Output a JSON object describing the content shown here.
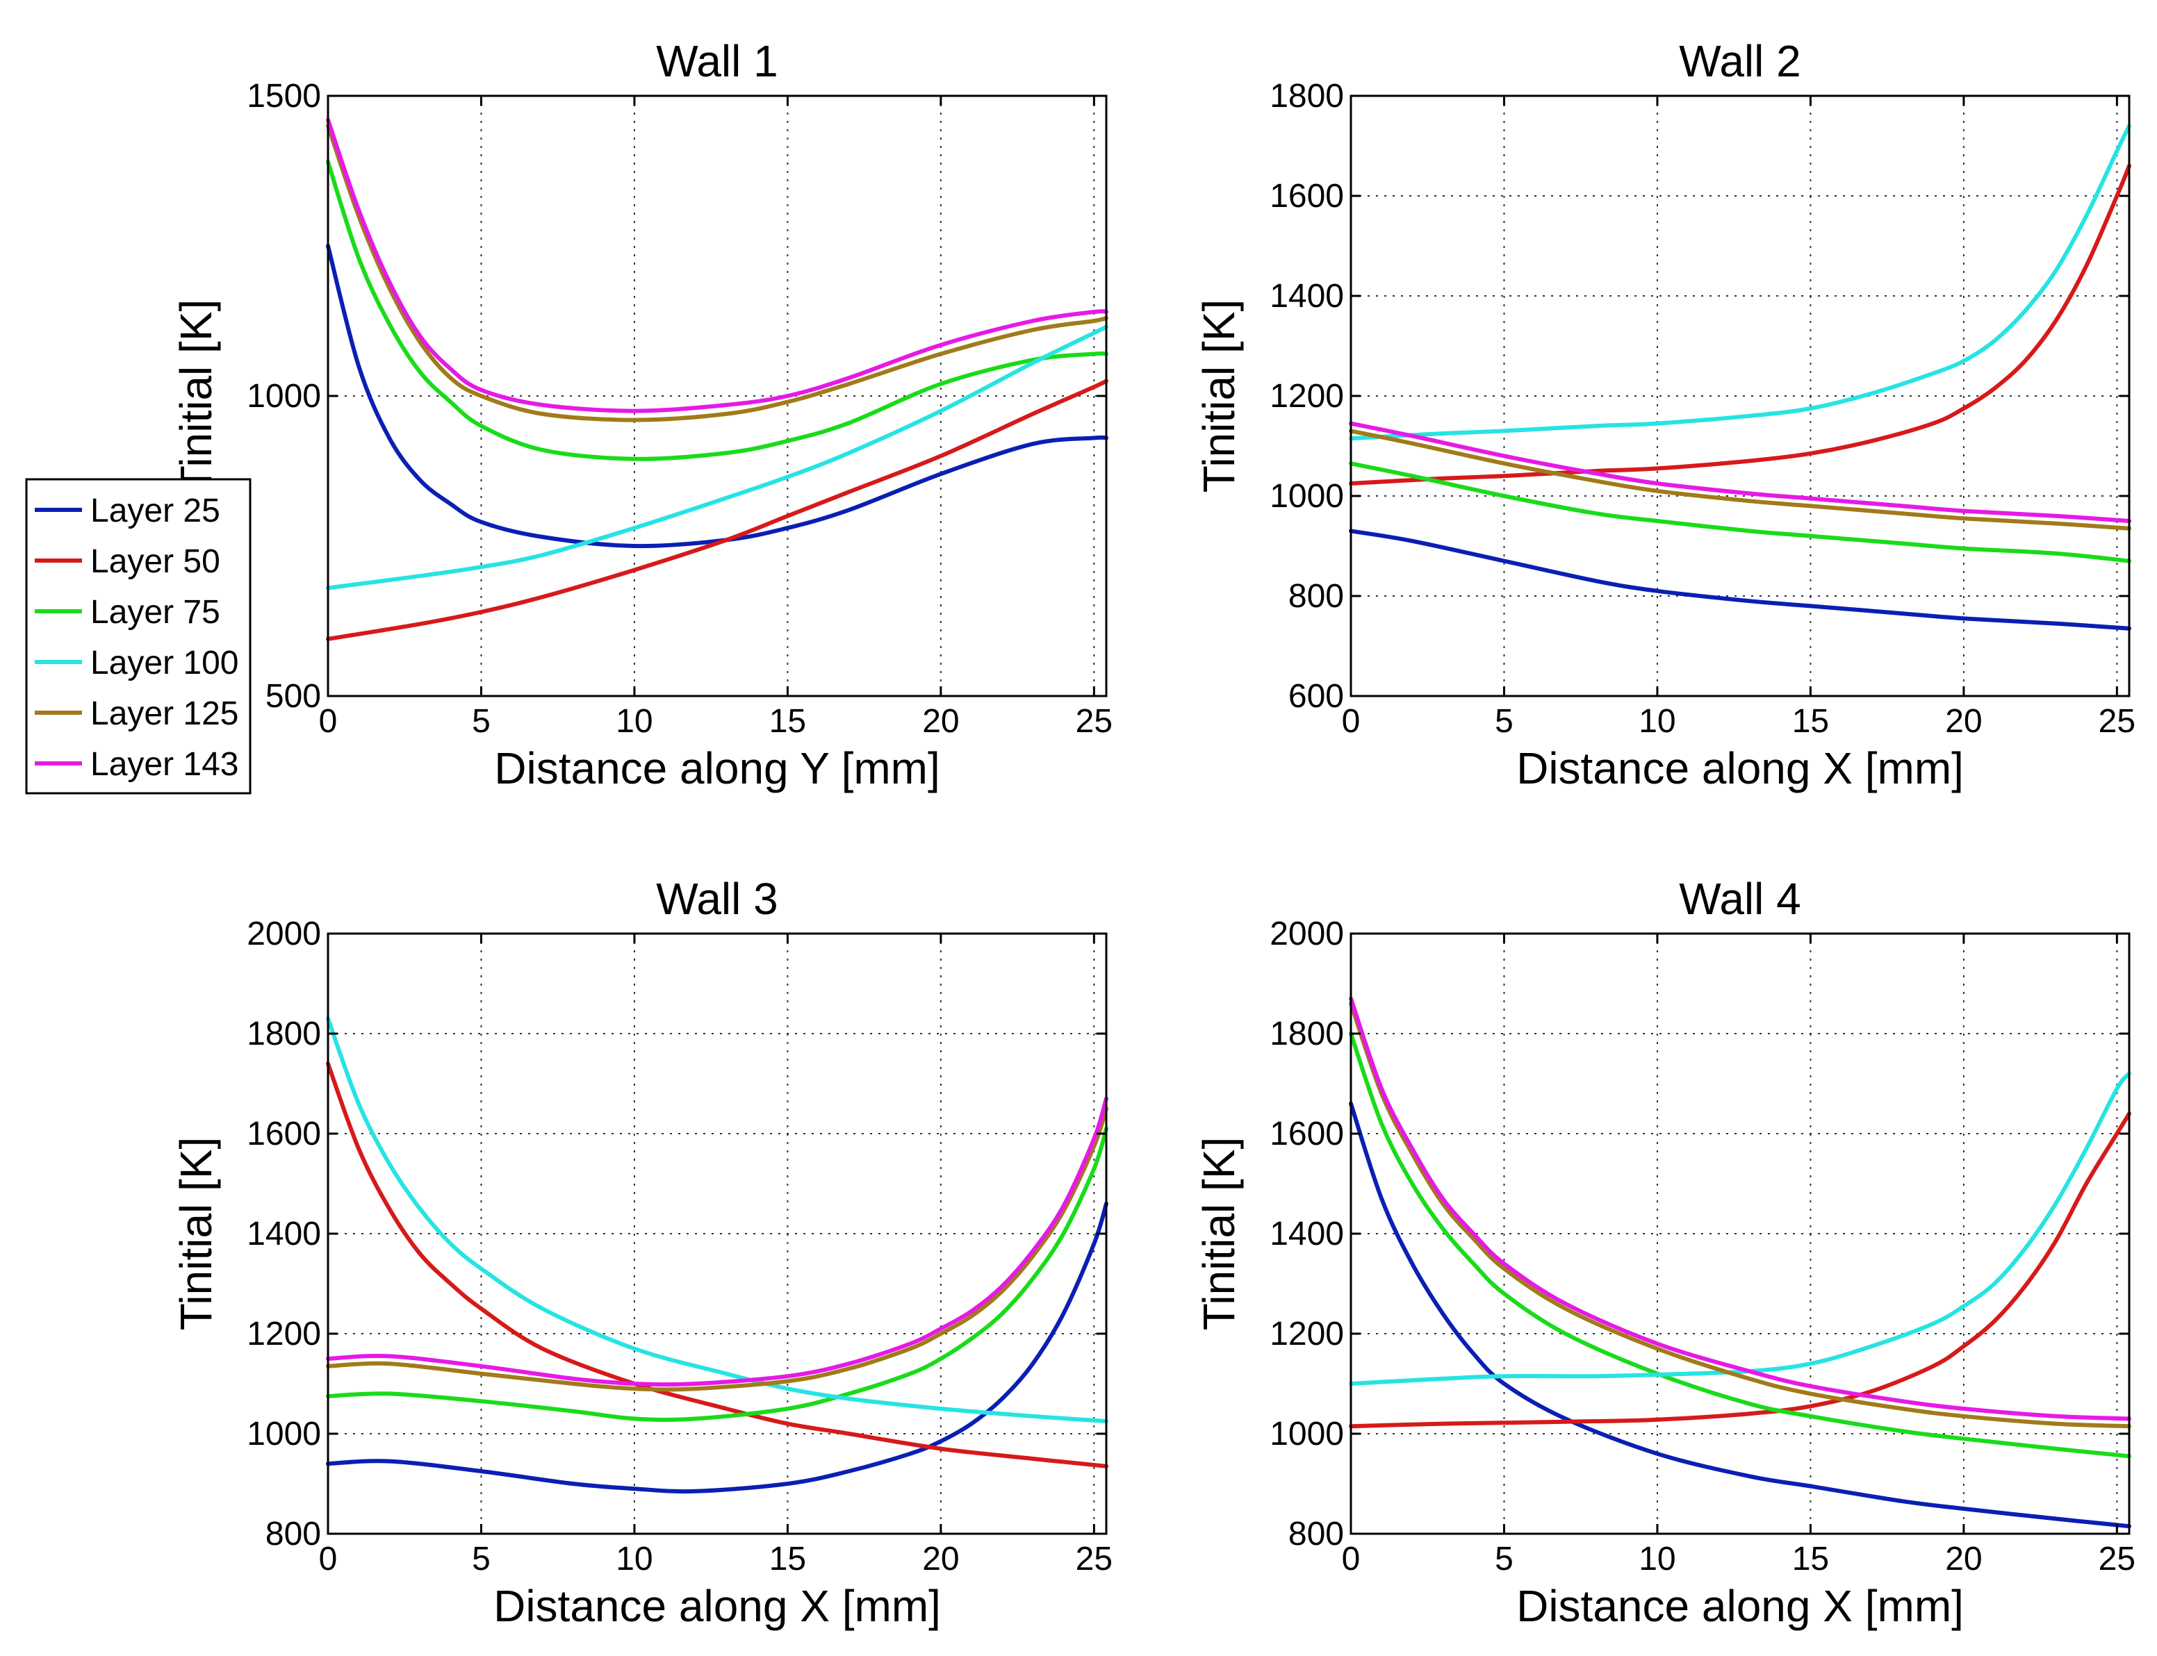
{
  "colors": {
    "Layer 25": "#0a1fb3",
    "Layer 50": "#d61a1a",
    "Layer 75": "#1adb1a",
    "Layer 100": "#27e3e3",
    "Layer 125": "#a17a1a",
    "Layer 143": "#e61ae6"
  },
  "legend": {
    "entries": [
      "Layer 25",
      "Layer 50",
      "Layer 75",
      "Layer 100",
      "Layer 125",
      "Layer 143"
    ],
    "placement": "left, between top and bottom rows"
  },
  "chart_data": [
    {
      "type": "line",
      "title": "Wall 1",
      "xlabel": "Distance along Y [mm]",
      "ylabel": "Tinitial [K]",
      "xlim": [
        0,
        25.4
      ],
      "ylim": [
        500,
        1500
      ],
      "xticks": [
        0,
        5,
        10,
        15,
        20,
        25
      ],
      "yticks": [
        500,
        1000,
        1500
      ],
      "grid": true,
      "series": [
        {
          "name": "Layer 25",
          "x": [
            0,
            1,
            2,
            3,
            4,
            5,
            7,
            10,
            13,
            15,
            17,
            20,
            23,
            25,
            25.4
          ],
          "y": [
            1250,
            1050,
            930,
            860,
            820,
            790,
            765,
            750,
            760,
            780,
            810,
            870,
            920,
            930,
            930
          ]
        },
        {
          "name": "Layer 50",
          "x": [
            0,
            3,
            5,
            7,
            10,
            13,
            15,
            17,
            20,
            23,
            25,
            25.4
          ],
          "y": [
            595,
            620,
            640,
            665,
            710,
            760,
            800,
            840,
            900,
            970,
            1015,
            1025
          ]
        },
        {
          "name": "Layer 75",
          "x": [
            0,
            1,
            2,
            3,
            4,
            5,
            7,
            10,
            13,
            15,
            17,
            20,
            23,
            25,
            25.4
          ],
          "y": [
            1390,
            1230,
            1120,
            1040,
            990,
            950,
            910,
            895,
            905,
            925,
            955,
            1020,
            1060,
            1070,
            1070
          ]
        },
        {
          "name": "Layer 100",
          "x": [
            0,
            3,
            5,
            7,
            10,
            13,
            15,
            17,
            20,
            23,
            25,
            25.4
          ],
          "y": [
            680,
            700,
            715,
            735,
            780,
            830,
            865,
            905,
            975,
            1055,
            1105,
            1115
          ]
        },
        {
          "name": "Layer 125",
          "x": [
            0,
            1,
            2,
            3,
            4,
            5,
            7,
            10,
            13,
            15,
            17,
            20,
            23,
            25,
            25.4
          ],
          "y": [
            1450,
            1300,
            1180,
            1090,
            1030,
            1000,
            970,
            960,
            970,
            990,
            1020,
            1070,
            1110,
            1125,
            1130
          ]
        },
        {
          "name": "Layer 143",
          "x": [
            0,
            1,
            2,
            3,
            4,
            5,
            7,
            10,
            13,
            15,
            17,
            20,
            23,
            25,
            25.4
          ],
          "y": [
            1460,
            1310,
            1190,
            1100,
            1045,
            1010,
            985,
            975,
            985,
            1000,
            1030,
            1085,
            1125,
            1140,
            1140
          ]
        }
      ]
    },
    {
      "type": "line",
      "title": "Wall 2",
      "xlabel": "Distance along X [mm]",
      "ylabel": "Tinitial [K]",
      "xlim": [
        0,
        25.4
      ],
      "ylim": [
        600,
        1800
      ],
      "xticks": [
        0,
        5,
        10,
        15,
        20,
        25
      ],
      "yticks": [
        600,
        800,
        1000,
        1200,
        1400,
        1600,
        1800
      ],
      "grid": true,
      "series": [
        {
          "name": "Layer 25",
          "x": [
            0,
            2,
            5,
            8,
            10,
            13,
            15,
            18,
            20,
            23,
            25.4
          ],
          "y": [
            930,
            910,
            870,
            830,
            810,
            790,
            780,
            765,
            755,
            745,
            735
          ]
        },
        {
          "name": "Layer 50",
          "x": [
            0,
            3,
            5,
            8,
            10,
            13,
            15,
            17,
            19,
            20,
            21,
            22,
            23,
            24,
            25,
            25.4
          ],
          "y": [
            1025,
            1035,
            1040,
            1050,
            1055,
            1070,
            1085,
            1110,
            1145,
            1175,
            1215,
            1270,
            1350,
            1460,
            1600,
            1660
          ]
        },
        {
          "name": "Layer 75",
          "x": [
            0,
            2,
            5,
            8,
            10,
            13,
            15,
            18,
            20,
            23,
            25.4
          ],
          "y": [
            1065,
            1040,
            1000,
            965,
            950,
            930,
            920,
            905,
            895,
            885,
            870
          ]
        },
        {
          "name": "Layer 100",
          "x": [
            0,
            3,
            5,
            8,
            10,
            13,
            15,
            17,
            19,
            20,
            21,
            22,
            23,
            24,
            25,
            25.4
          ],
          "y": [
            1115,
            1125,
            1130,
            1140,
            1145,
            1160,
            1175,
            1205,
            1245,
            1270,
            1310,
            1370,
            1450,
            1560,
            1690,
            1740
          ]
        },
        {
          "name": "Layer 125",
          "x": [
            0,
            2,
            5,
            8,
            10,
            13,
            15,
            18,
            20,
            23,
            25.4
          ],
          "y": [
            1130,
            1105,
            1065,
            1030,
            1010,
            990,
            980,
            965,
            955,
            945,
            935
          ]
        },
        {
          "name": "Layer 143",
          "x": [
            0,
            2,
            5,
            8,
            10,
            13,
            15,
            18,
            20,
            23,
            25.4
          ],
          "y": [
            1145,
            1120,
            1080,
            1045,
            1025,
            1005,
            995,
            980,
            970,
            960,
            950
          ]
        }
      ]
    },
    {
      "type": "line",
      "title": "Wall 3",
      "xlabel": "Distance along X [mm]",
      "ylabel": "Tinitial [K]",
      "xlim": [
        0,
        25.4
      ],
      "ylim": [
        800,
        2000
      ],
      "xticks": [
        0,
        5,
        10,
        15,
        20,
        25
      ],
      "yticks": [
        800,
        1000,
        1200,
        1400,
        1600,
        1800,
        2000
      ],
      "grid": true,
      "series": [
        {
          "name": "Layer 25",
          "x": [
            0,
            2,
            5,
            8,
            10,
            12,
            15,
            17,
            19,
            20,
            21,
            22,
            23,
            24,
            25,
            25.4
          ],
          "y": [
            940,
            945,
            925,
            900,
            890,
            885,
            900,
            925,
            960,
            985,
            1020,
            1070,
            1140,
            1240,
            1380,
            1460
          ]
        },
        {
          "name": "Layer 50",
          "x": [
            0,
            1,
            2,
            3,
            4,
            5,
            7,
            10,
            13,
            15,
            17,
            20,
            23,
            25.4
          ],
          "y": [
            1740,
            1570,
            1450,
            1360,
            1300,
            1250,
            1170,
            1100,
            1050,
            1020,
            1000,
            970,
            950,
            935
          ]
        },
        {
          "name": "Layer 75",
          "x": [
            0,
            2,
            5,
            8,
            10,
            12,
            15,
            17,
            19,
            20,
            21,
            22,
            23,
            24,
            25,
            25.4
          ],
          "y": [
            1075,
            1080,
            1065,
            1045,
            1030,
            1030,
            1050,
            1080,
            1120,
            1150,
            1190,
            1240,
            1310,
            1400,
            1530,
            1610
          ]
        },
        {
          "name": "Layer 100",
          "x": [
            0,
            1,
            2,
            3,
            4,
            5,
            7,
            10,
            13,
            15,
            17,
            20,
            23,
            25.4
          ],
          "y": [
            1830,
            1660,
            1540,
            1450,
            1380,
            1330,
            1250,
            1170,
            1120,
            1090,
            1070,
            1050,
            1035,
            1025
          ]
        },
        {
          "name": "Layer 125",
          "x": [
            0,
            2,
            5,
            8,
            10,
            12,
            15,
            17,
            19,
            20,
            21,
            22,
            23,
            24,
            25,
            25.4
          ],
          "y": [
            1135,
            1140,
            1120,
            1100,
            1090,
            1090,
            1105,
            1130,
            1170,
            1200,
            1235,
            1285,
            1355,
            1445,
            1575,
            1650
          ]
        },
        {
          "name": "Layer 143",
          "x": [
            0,
            2,
            5,
            8,
            10,
            12,
            15,
            17,
            19,
            20,
            21,
            22,
            23,
            24,
            25,
            25.4
          ],
          "y": [
            1150,
            1155,
            1135,
            1110,
            1100,
            1100,
            1115,
            1140,
            1180,
            1210,
            1245,
            1295,
            1365,
            1455,
            1590,
            1670
          ]
        }
      ]
    },
    {
      "type": "line",
      "title": "Wall 4",
      "xlabel": "Distance along X [mm]",
      "ylabel": "Tinitial [K]",
      "xlim": [
        0,
        25.4
      ],
      "ylim": [
        800,
        2000
      ],
      "xticks": [
        0,
        5,
        10,
        15,
        20,
        25
      ],
      "yticks": [
        800,
        1000,
        1200,
        1400,
        1600,
        1800,
        2000
      ],
      "grid": true,
      "series": [
        {
          "name": "Layer 25",
          "x": [
            0,
            1,
            2,
            3,
            4,
            5,
            7,
            10,
            13,
            15,
            18,
            20,
            23,
            25.4
          ],
          "y": [
            1660,
            1470,
            1340,
            1240,
            1160,
            1100,
            1030,
            960,
            915,
            895,
            865,
            850,
            830,
            815
          ]
        },
        {
          "name": "Layer 50",
          "x": [
            0,
            3,
            5,
            8,
            10,
            13,
            15,
            17,
            19,
            20,
            21,
            22,
            23,
            24,
            25,
            25.4
          ],
          "y": [
            1015,
            1020,
            1022,
            1025,
            1028,
            1040,
            1055,
            1085,
            1135,
            1175,
            1225,
            1295,
            1385,
            1500,
            1600,
            1640
          ]
        },
        {
          "name": "Layer 75",
          "x": [
            0,
            1,
            2,
            3,
            4,
            5,
            7,
            10,
            13,
            15,
            18,
            20,
            23,
            25.4
          ],
          "y": [
            1800,
            1620,
            1500,
            1410,
            1340,
            1280,
            1200,
            1120,
            1060,
            1035,
            1005,
            990,
            970,
            955
          ]
        },
        {
          "name": "Layer 100",
          "x": [
            0,
            3,
            5,
            8,
            10,
            13,
            15,
            17,
            19,
            20,
            21,
            22,
            23,
            24,
            25,
            25.4
          ],
          "y": [
            1100,
            1110,
            1115,
            1115,
            1118,
            1125,
            1140,
            1175,
            1220,
            1255,
            1300,
            1370,
            1460,
            1570,
            1690,
            1720
          ]
        },
        {
          "name": "Layer 125",
          "x": [
            0,
            1,
            2,
            3,
            4,
            5,
            7,
            10,
            13,
            15,
            18,
            20,
            23,
            25.4
          ],
          "y": [
            1860,
            1680,
            1560,
            1460,
            1390,
            1330,
            1250,
            1170,
            1110,
            1080,
            1050,
            1035,
            1020,
            1015
          ]
        },
        {
          "name": "Layer 143",
          "x": [
            0,
            1,
            2,
            3,
            4,
            5,
            7,
            10,
            13,
            15,
            18,
            20,
            23,
            25.4
          ],
          "y": [
            1870,
            1690,
            1570,
            1470,
            1400,
            1340,
            1260,
            1180,
            1125,
            1095,
            1065,
            1050,
            1035,
            1030
          ]
        }
      ]
    }
  ]
}
